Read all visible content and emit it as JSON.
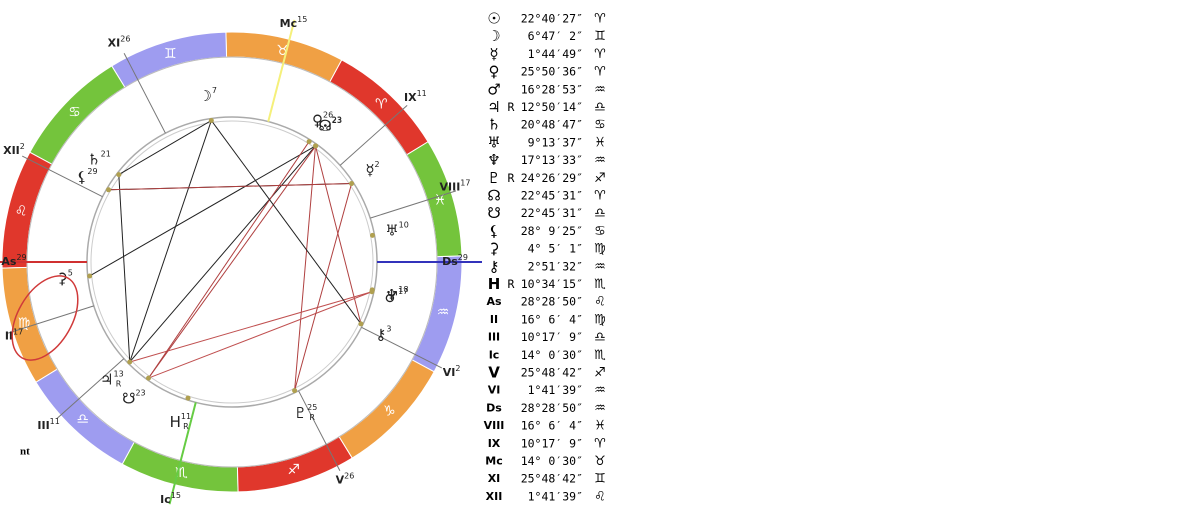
{
  "table": {
    "rows": [
      {
        "symbol": "☉",
        "position": "22°40′27″",
        "sign": "♈"
      },
      {
        "symbol": "☽",
        "position": "6°47′ 2″",
        "sign": "♊"
      },
      {
        "symbol": "☿",
        "position": "1°44′49″",
        "sign": "♈"
      },
      {
        "symbol": "♀",
        "position": "25°50′36″",
        "sign": "♈"
      },
      {
        "symbol": "♂",
        "position": "16°28′53″",
        "sign": "♒"
      },
      {
        "symbol": "♃",
        "retro": "R",
        "position": "12°50′14″",
        "sign": "♎"
      },
      {
        "symbol": "♄",
        "position": "20°48′47″",
        "sign": "♋"
      },
      {
        "symbol": "♅",
        "position": "9°13′37″",
        "sign": "♓"
      },
      {
        "symbol": "♆",
        "position": "17°13′33″",
        "sign": "♒"
      },
      {
        "symbol": "♇",
        "retro": "R",
        "position": "24°26′29″",
        "sign": "♐"
      },
      {
        "symbol": "☊",
        "position": "22°45′31″",
        "sign": "♈"
      },
      {
        "symbol": "☋",
        "position": "22°45′31″",
        "sign": "♎"
      },
      {
        "symbol": "⚸",
        "position": "28° 9′25″",
        "sign": "♋"
      },
      {
        "symbol": "⚳",
        "position": "4° 5′ 1″",
        "sign": "♍"
      },
      {
        "symbol": "⚷",
        "position": "2°51′32″",
        "sign": "♒"
      },
      {
        "symbol": "H",
        "retro": "R",
        "position": "10°34′15″",
        "sign": "♏"
      },
      {
        "symbol": "As",
        "position": "28°28′50″",
        "sign": "♌"
      },
      {
        "symbol": "II",
        "position": "16° 6′ 4″",
        "sign": "♍"
      },
      {
        "symbol": "III",
        "position": "10°17′ 9″",
        "sign": "♎"
      },
      {
        "symbol": "Ic",
        "position": "14° 0′30″",
        "sign": "♏"
      },
      {
        "symbol": "V",
        "position": "25°48′42″",
        "sign": "♐"
      },
      {
        "symbol": "VI",
        "position": "1°41′39″",
        "sign": "♒"
      },
      {
        "symbol": "Ds",
        "position": "28°28′50″",
        "sign": "♒"
      },
      {
        "symbol": "VIII",
        "position": "16° 6′ 4″",
        "sign": "♓"
      },
      {
        "symbol": "IX",
        "position": "10°17′ 9″",
        "sign": "♈"
      },
      {
        "symbol": "Mc",
        "position": "14° 0′30″",
        "sign": "♉"
      },
      {
        "symbol": "XI",
        "position": "25°48′42″",
        "sign": "♊"
      },
      {
        "symbol": "XII",
        "position": "1°41′39″",
        "sign": "♌"
      }
    ]
  },
  "wheel": {
    "signs": [
      "♈",
      "♉",
      "♊",
      "♋",
      "♌",
      "♍",
      "♎",
      "♏",
      "♐",
      "♑",
      "♒",
      "♓"
    ],
    "houses": [
      {
        "label": "As",
        "deg": "29"
      },
      {
        "label": "II",
        "deg": "17"
      },
      {
        "label": "III",
        "deg": "11"
      },
      {
        "label": "Ic",
        "deg": "15"
      },
      {
        "label": "V",
        "deg": "26"
      },
      {
        "label": "VI",
        "deg": "2"
      },
      {
        "label": "Ds",
        "deg": "29"
      },
      {
        "label": "VIII",
        "deg": "17"
      },
      {
        "label": "IX",
        "deg": "11"
      },
      {
        "label": "Mc",
        "deg": "15"
      },
      {
        "label": "XI",
        "deg": "26"
      },
      {
        "label": "XII",
        "deg": "2"
      }
    ],
    "planets": [
      {
        "glyph": "☽",
        "deg": "7"
      },
      {
        "glyph": "☊",
        "deg": "23"
      },
      {
        "glyph": "☉",
        "deg": "23"
      },
      {
        "glyph": "♀",
        "deg": "26"
      },
      {
        "glyph": "☿",
        "deg": "2"
      },
      {
        "glyph": "♅",
        "deg": "10"
      },
      {
        "glyph": "♂",
        "deg": "17"
      },
      {
        "glyph": "♆",
        "deg": "18"
      },
      {
        "glyph": "⚷",
        "deg": "3"
      },
      {
        "glyph": "♇",
        "deg": "25",
        "retro": "R"
      },
      {
        "glyph": "H",
        "deg": "11",
        "retro": "R"
      },
      {
        "glyph": "☋",
        "deg": "23"
      },
      {
        "glyph": "♃",
        "deg": "13",
        "retro": "R"
      },
      {
        "glyph": "⚳",
        "deg": "5"
      },
      {
        "glyph": "⚸",
        "deg": "29"
      },
      {
        "glyph": "♄",
        "deg": "21"
      }
    ]
  },
  "footer": {
    "text": "nt"
  }
}
